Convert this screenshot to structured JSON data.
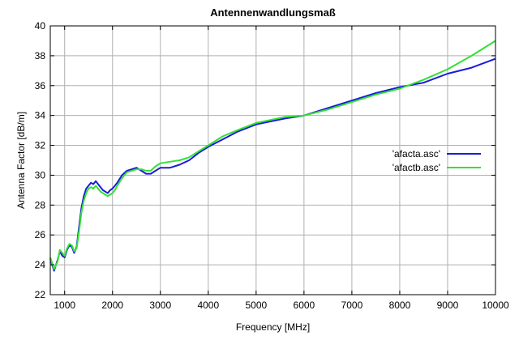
{
  "chart_data": {
    "type": "line",
    "title": "Antennenwandlungsmaß",
    "xlabel": "Frequency [MHz]",
    "ylabel": "Antenna Factor [dB/m]",
    "xlim": [
      700,
      10000
    ],
    "ylim": [
      22,
      40
    ],
    "xticks": [
      1000,
      2000,
      3000,
      4000,
      5000,
      6000,
      7000,
      8000,
      9000,
      10000
    ],
    "yticks": [
      22,
      24,
      26,
      28,
      30,
      32,
      34,
      36,
      38,
      40
    ],
    "grid": true,
    "legend_position": "right",
    "series": [
      {
        "name": "'afacta.asc'",
        "color": "#1a1adc",
        "x": [
          700,
          780,
          850,
          900,
          950,
          1000,
          1050,
          1100,
          1150,
          1200,
          1250,
          1300,
          1350,
          1400,
          1450,
          1500,
          1550,
          1600,
          1650,
          1700,
          1750,
          1800,
          1850,
          1900,
          1950,
          2000,
          2050,
          2100,
          2200,
          2300,
          2400,
          2500,
          2600,
          2700,
          2800,
          2900,
          3000,
          3200,
          3400,
          3600,
          3800,
          4000,
          4300,
          4600,
          5000,
          5300,
          5600,
          6000,
          6500,
          7000,
          7500,
          8000,
          8500,
          9000,
          9500,
          10000
        ],
        "y": [
          24.4,
          23.6,
          24.3,
          24.9,
          24.6,
          24.5,
          25.0,
          25.3,
          25.2,
          24.8,
          25.2,
          26.5,
          27.8,
          28.6,
          29.1,
          29.3,
          29.5,
          29.4,
          29.6,
          29.4,
          29.2,
          29.0,
          28.9,
          28.8,
          29.0,
          29.1,
          29.3,
          29.5,
          30.0,
          30.3,
          30.4,
          30.5,
          30.3,
          30.1,
          30.1,
          30.3,
          30.5,
          30.5,
          30.7,
          31.0,
          31.5,
          31.9,
          32.4,
          32.9,
          33.4,
          33.6,
          33.8,
          34.0,
          34.5,
          35.0,
          35.5,
          35.9,
          36.2,
          36.8,
          37.2,
          37.8
        ]
      },
      {
        "name": "'afactb.asc'",
        "color": "#33e033",
        "x": [
          700,
          780,
          850,
          900,
          950,
          1000,
          1050,
          1100,
          1150,
          1200,
          1250,
          1300,
          1350,
          1400,
          1450,
          1500,
          1550,
          1600,
          1650,
          1700,
          1750,
          1800,
          1850,
          1900,
          1950,
          2000,
          2050,
          2100,
          2200,
          2300,
          2400,
          2500,
          2600,
          2700,
          2800,
          2900,
          3000,
          3200,
          3400,
          3600,
          3800,
          4000,
          4300,
          4600,
          5000,
          5300,
          5600,
          6000,
          6500,
          7000,
          7500,
          8000,
          8500,
          9000,
          9500,
          10000
        ],
        "y": [
          24.5,
          23.7,
          24.2,
          25.0,
          24.8,
          24.6,
          25.1,
          25.4,
          25.3,
          24.9,
          25.1,
          26.2,
          27.5,
          28.3,
          28.8,
          29.1,
          29.2,
          29.1,
          29.3,
          29.1,
          28.9,
          28.8,
          28.7,
          28.6,
          28.7,
          28.8,
          29.0,
          29.3,
          29.8,
          30.2,
          30.3,
          30.4,
          30.4,
          30.3,
          30.3,
          30.6,
          30.8,
          30.9,
          31.0,
          31.2,
          31.6,
          32.0,
          32.6,
          33.0,
          33.5,
          33.7,
          33.9,
          34.0,
          34.4,
          34.9,
          35.4,
          35.8,
          36.4,
          37.1,
          38.0,
          39.0
        ]
      }
    ]
  }
}
